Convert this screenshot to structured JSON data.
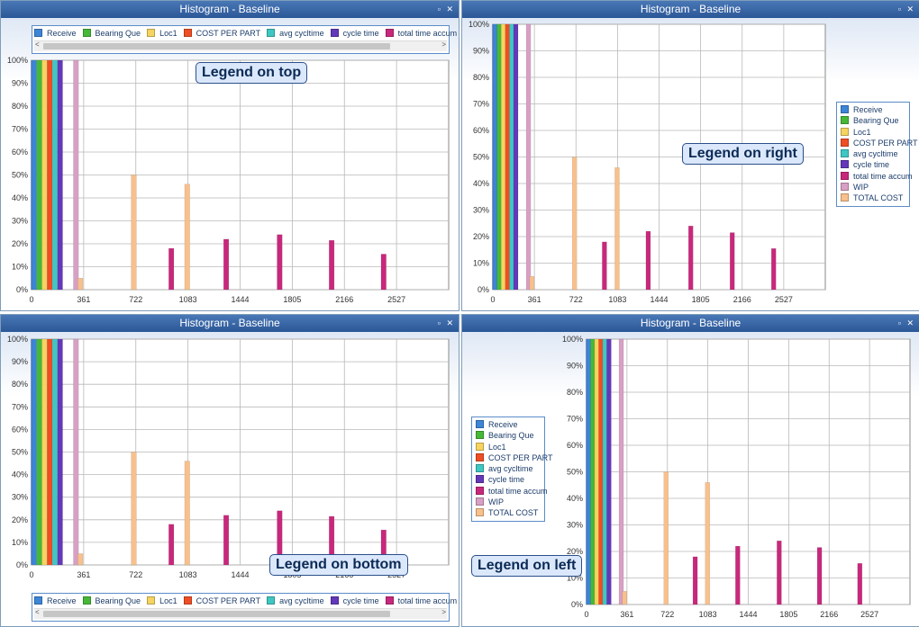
{
  "panel_title": "Histogram - Baseline",
  "window_buttons": "▫ ✕",
  "callouts": {
    "top": "Legend on top",
    "right": "Legend on right",
    "bottom": "Legend on bottom",
    "left": "Legend on left"
  },
  "legend": {
    "items": [
      "Receive",
      "Bearing Que",
      "Loc1",
      "COST PER PART",
      "avg cycltime",
      "cycle time",
      "total time accum",
      "WIP",
      "TOTAL COST"
    ],
    "colors": [
      "#3d85d6",
      "#46b838",
      "#f5d460",
      "#ef4e24",
      "#3ec7c3",
      "#6438b8",
      "#c8287c",
      "#d7a0c4",
      "#f8c08c"
    ],
    "scroll_left": "<",
    "scroll_right": ">"
  },
  "chart_data": {
    "type": "bar",
    "title": "Histogram - Baseline",
    "xlabel": "",
    "ylabel": "",
    "x_ticks": [
      "0",
      "361",
      "722",
      "1083",
      "1444",
      "1805",
      "2166",
      "2527"
    ],
    "x_range": [
      0,
      2888
    ],
    "ylim": [
      0,
      100
    ],
    "y_ticks": [
      "0%",
      "10%",
      "20%",
      "30%",
      "40%",
      "50%",
      "60%",
      "70%",
      "80%",
      "90%",
      "100%"
    ],
    "grid": true,
    "series": [
      {
        "name": "Receive",
        "points": [
          {
            "x": 0,
            "y": 100
          }
        ]
      },
      {
        "name": "Bearing Que",
        "points": [
          {
            "x": 36,
            "y": 100
          }
        ]
      },
      {
        "name": "Loc1",
        "points": [
          {
            "x": 72,
            "y": 100
          }
        ]
      },
      {
        "name": "COST PER PART",
        "points": [
          {
            "x": 108,
            "y": 100
          }
        ]
      },
      {
        "name": "avg cycltime",
        "points": [
          {
            "x": 144,
            "y": 100
          }
        ]
      },
      {
        "name": "cycle time",
        "points": [
          {
            "x": 180,
            "y": 100
          }
        ]
      },
      {
        "name": "total time accum",
        "points": [
          {
            "x": 950,
            "y": 18
          },
          {
            "x": 1330,
            "y": 22
          },
          {
            "x": 1700,
            "y": 24
          },
          {
            "x": 2060,
            "y": 21.5
          },
          {
            "x": 2420,
            "y": 15.5
          }
        ]
      },
      {
        "name": "WIP",
        "points": [
          {
            "x": 290,
            "y": 100
          }
        ]
      },
      {
        "name": "TOTAL COST",
        "points": [
          {
            "x": 320,
            "y": 5
          },
          {
            "x": 690,
            "y": 50
          },
          {
            "x": 1060,
            "y": 46
          }
        ]
      }
    ]
  }
}
